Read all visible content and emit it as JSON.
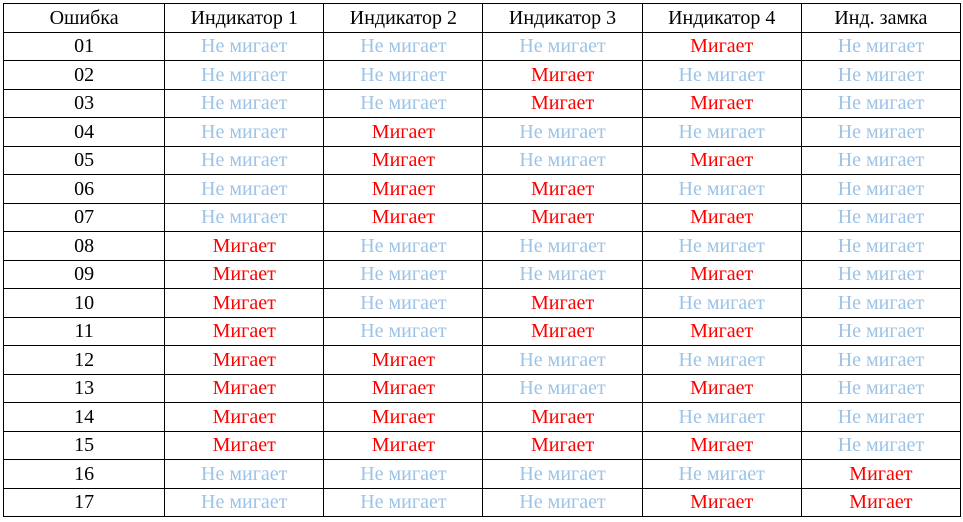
{
  "table": {
    "headers": [
      "Ошибка",
      "Индикатор 1",
      "Индикатор 2",
      "Индикатор 3",
      "Индикатор 4",
      "Инд. замка"
    ],
    "state_labels": {
      "blinking": "Мигает",
      "not_blinking": "Не мигает"
    },
    "colors": {
      "blinking": "#ff0000",
      "not_blinking": "#9dc3e6",
      "text": "#000000",
      "border": "#000000"
    },
    "rows": [
      {
        "code": "01",
        "states": [
          0,
          0,
          0,
          1,
          0
        ]
      },
      {
        "code": "02",
        "states": [
          0,
          0,
          1,
          0,
          0
        ]
      },
      {
        "code": "03",
        "states": [
          0,
          0,
          1,
          1,
          0
        ]
      },
      {
        "code": "04",
        "states": [
          0,
          1,
          0,
          0,
          0
        ]
      },
      {
        "code": "05",
        "states": [
          0,
          1,
          0,
          1,
          0
        ]
      },
      {
        "code": "06",
        "states": [
          0,
          1,
          1,
          0,
          0
        ]
      },
      {
        "code": "07",
        "states": [
          0,
          1,
          1,
          1,
          0
        ]
      },
      {
        "code": "08",
        "states": [
          1,
          0,
          0,
          0,
          0
        ]
      },
      {
        "code": "09",
        "states": [
          1,
          0,
          0,
          1,
          0
        ]
      },
      {
        "code": "10",
        "states": [
          1,
          0,
          1,
          0,
          0
        ]
      },
      {
        "code": "11",
        "states": [
          1,
          0,
          1,
          1,
          0
        ]
      },
      {
        "code": "12",
        "states": [
          1,
          1,
          0,
          0,
          0
        ]
      },
      {
        "code": "13",
        "states": [
          1,
          1,
          0,
          1,
          0
        ]
      },
      {
        "code": "14",
        "states": [
          1,
          1,
          1,
          0,
          0
        ]
      },
      {
        "code": "15",
        "states": [
          1,
          1,
          1,
          1,
          0
        ]
      },
      {
        "code": "16",
        "states": [
          0,
          0,
          0,
          0,
          1
        ]
      },
      {
        "code": "17",
        "states": [
          0,
          0,
          0,
          1,
          1
        ]
      }
    ]
  }
}
